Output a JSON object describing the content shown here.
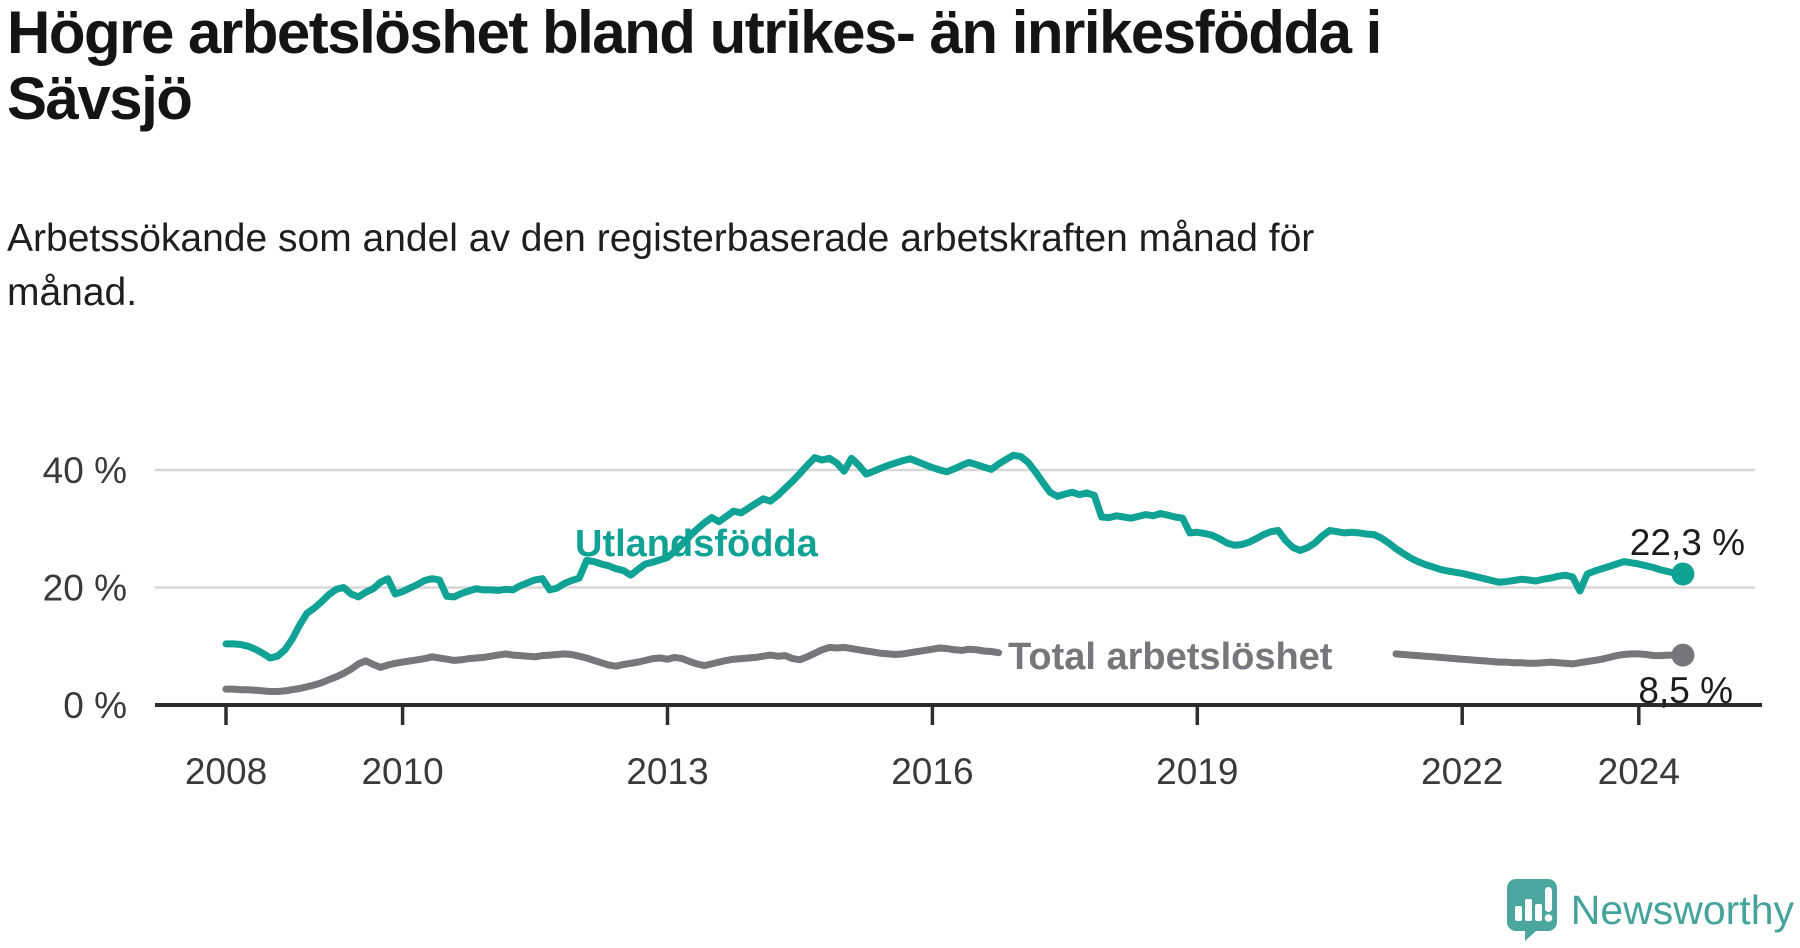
{
  "header": {
    "title": "Högre arbetslöshet bland utrikes- än inrikesfödda i Sävsjö",
    "title_lines": [
      "Högre arbetslöshet bland utrikes- än inrikesfödda i",
      "Sävsjö"
    ],
    "subtitle": "Arbetssökande som andel av den registerbaserade arbetskraften månad för månad.",
    "subtitle_lines": [
      "Arbetssökande som andel av den registerbaserade arbetskraften månad för",
      "månad."
    ]
  },
  "chart_data": {
    "type": "line",
    "title": "Högre arbetslöshet bland utrikes- än inrikesfödda i Sävsjö",
    "xlabel": "",
    "ylabel": "Arbetssökande som andel av den registerbaserade arbetskraften",
    "unit": "%",
    "x_start": {
      "year": 2008,
      "month": 1
    },
    "x_end": {
      "year": 2024,
      "month": 7
    },
    "points_per_year": 12,
    "ylim": [
      0,
      45
    ],
    "grid": "horizontal",
    "yticks": [
      {
        "value": 0,
        "label": "0 %"
      },
      {
        "value": 20,
        "label": "20 %"
      },
      {
        "value": 40,
        "label": "40 %"
      }
    ],
    "xticks": [
      {
        "year": 2008,
        "label": "2008"
      },
      {
        "year": 2010,
        "label": "2010"
      },
      {
        "year": 2013,
        "label": "2013"
      },
      {
        "year": 2016,
        "label": "2016"
      },
      {
        "year": 2019,
        "label": "2019"
      },
      {
        "year": 2022,
        "label": "2022"
      },
      {
        "year": 2024,
        "label": "2024"
      }
    ],
    "series": [
      {
        "id": "total",
        "name": "Total arbetslöshet",
        "color": "#76767b",
        "end_value": 8.5,
        "end_label": "8,5 %",
        "values": [
          2.7,
          2.7,
          2.6,
          2.6,
          2.5,
          2.4,
          2.3,
          2.3,
          2.4,
          2.6,
          2.8,
          3.1,
          3.4,
          3.8,
          4.3,
          4.8,
          5.4,
          6.1,
          7.0,
          7.5,
          6.9,
          6.4,
          6.8,
          7.1,
          7.3,
          7.5,
          7.7,
          7.9,
          8.2,
          8.0,
          7.8,
          7.6,
          7.7,
          7.9,
          8.0,
          8.1,
          8.3,
          8.5,
          8.7,
          8.5,
          8.4,
          8.3,
          8.2,
          8.4,
          8.5,
          8.6,
          8.7,
          8.6,
          8.3,
          8.0,
          7.6,
          7.2,
          6.8,
          6.6,
          6.9,
          7.1,
          7.3,
          7.6,
          7.9,
          8.0,
          7.8,
          8.1,
          7.9,
          7.4,
          7.0,
          6.7,
          7.0,
          7.3,
          7.6,
          7.8,
          7.9,
          8.0,
          8.1,
          8.3,
          8.5,
          8.3,
          8.4,
          7.9,
          7.7,
          8.2,
          8.8,
          9.4,
          9.8,
          9.7,
          9.8,
          9.6,
          9.4,
          9.2,
          9.0,
          8.8,
          8.7,
          8.6,
          8.7,
          8.9,
          9.1,
          9.3,
          9.5,
          9.7,
          9.6,
          9.4,
          9.3,
          9.5,
          9.4,
          9.2,
          9.1,
          8.9,
          null,
          null,
          null,
          null,
          null,
          null,
          null,
          null,
          null,
          null,
          null,
          null,
          null,
          null,
          null,
          null,
          null,
          null,
          null,
          null,
          null,
          null,
          null,
          null,
          null,
          null,
          null,
          null,
          null,
          null,
          null,
          null,
          null,
          null,
          null,
          null,
          null,
          null,
          null,
          null,
          null,
          null,
          null,
          null,
          null,
          null,
          null,
          null,
          null,
          null,
          null,
          null,
          null,
          8.7,
          8.6,
          8.5,
          8.4,
          8.3,
          8.2,
          8.1,
          8.0,
          7.9,
          7.8,
          7.7,
          7.6,
          7.5,
          7.4,
          7.3,
          7.3,
          7.2,
          7.2,
          7.1,
          7.1,
          7.2,
          7.3,
          7.2,
          7.1,
          7.0,
          7.2,
          7.4,
          7.6,
          7.8,
          8.1,
          8.4,
          8.6,
          8.7,
          8.7,
          8.6,
          8.4,
          8.4,
          8.5,
          8.5,
          8.5
        ]
      },
      {
        "id": "utlandsfodda",
        "name": "Utlandsfödda",
        "color": "#10a294",
        "end_value": 22.3,
        "end_label": "22,3 %",
        "values": [
          10.4,
          10.4,
          10.3,
          10.0,
          9.5,
          8.8,
          8.0,
          8.3,
          9.4,
          11.2,
          13.6,
          15.6,
          16.5,
          17.6,
          18.8,
          19.7,
          20.0,
          18.9,
          18.4,
          19.2,
          19.8,
          20.9,
          21.5,
          18.9,
          19.3,
          19.9,
          20.5,
          21.2,
          21.5,
          21.3,
          18.5,
          18.4,
          19.0,
          19.4,
          19.8,
          19.6,
          19.6,
          19.5,
          19.7,
          19.6,
          20.3,
          20.8,
          21.3,
          21.5,
          19.6,
          19.9,
          20.7,
          21.2,
          21.6,
          24.6,
          24.4,
          24.0,
          23.7,
          23.2,
          22.9,
          22.1,
          23.1,
          24.0,
          24.3,
          24.7,
          25.1,
          26.2,
          27.4,
          28.7,
          29.9,
          31.0,
          31.9,
          31.2,
          32.1,
          33.0,
          32.7,
          33.5,
          34.3,
          35.1,
          34.7,
          35.7,
          36.9,
          38.1,
          39.4,
          40.8,
          42.1,
          41.7,
          42.0,
          41.2,
          39.8,
          42.0,
          40.8,
          39.3,
          39.8,
          40.3,
          40.8,
          41.2,
          41.6,
          41.9,
          41.4,
          40.9,
          40.4,
          40.0,
          39.7,
          40.2,
          40.8,
          41.3,
          40.9,
          40.5,
          40.1,
          41.0,
          41.8,
          42.5,
          42.3,
          41.3,
          39.7,
          37.9,
          36.2,
          35.5,
          35.9,
          36.2,
          35.8,
          36.1,
          35.7,
          32.0,
          31.9,
          32.2,
          32.0,
          31.8,
          32.1,
          32.4,
          32.2,
          32.6,
          32.3,
          32.0,
          31.8,
          29.3,
          29.4,
          29.2,
          28.9,
          28.3,
          27.6,
          27.2,
          27.3,
          27.7,
          28.3,
          29.0,
          29.5,
          29.7,
          28.0,
          26.8,
          26.3,
          26.8,
          27.6,
          28.8,
          29.7,
          29.5,
          29.3,
          29.4,
          29.3,
          29.1,
          29.0,
          28.4,
          27.6,
          26.6,
          25.8,
          25.0,
          24.4,
          23.9,
          23.5,
          23.1,
          22.8,
          22.6,
          22.4,
          22.1,
          21.8,
          21.5,
          21.2,
          20.9,
          21.0,
          21.2,
          21.4,
          21.3,
          21.1,
          21.4,
          21.6,
          21.9,
          22.1,
          21.8,
          19.4,
          22.3,
          22.8,
          23.2,
          23.6,
          24.0,
          24.4,
          24.2,
          24.0,
          23.7,
          23.4,
          23.0,
          22.7,
          22.4,
          22.3
        ]
      }
    ]
  },
  "annotations": {
    "utlandsfodda_label": "Utlandsfödda",
    "total_label": "Total arbetslöshet",
    "utlandsfodda_end_label": "22,3 %",
    "total_end_label": "8,5 %"
  },
  "logo": {
    "text": "Newsworthy",
    "color": "#48a49d"
  },
  "colors": {
    "accent_teal": "#10a294",
    "series_gray": "#76767b",
    "gridline": "#d8d8d8",
    "axis": "#2d2d2d",
    "text_dark": "#141414"
  }
}
